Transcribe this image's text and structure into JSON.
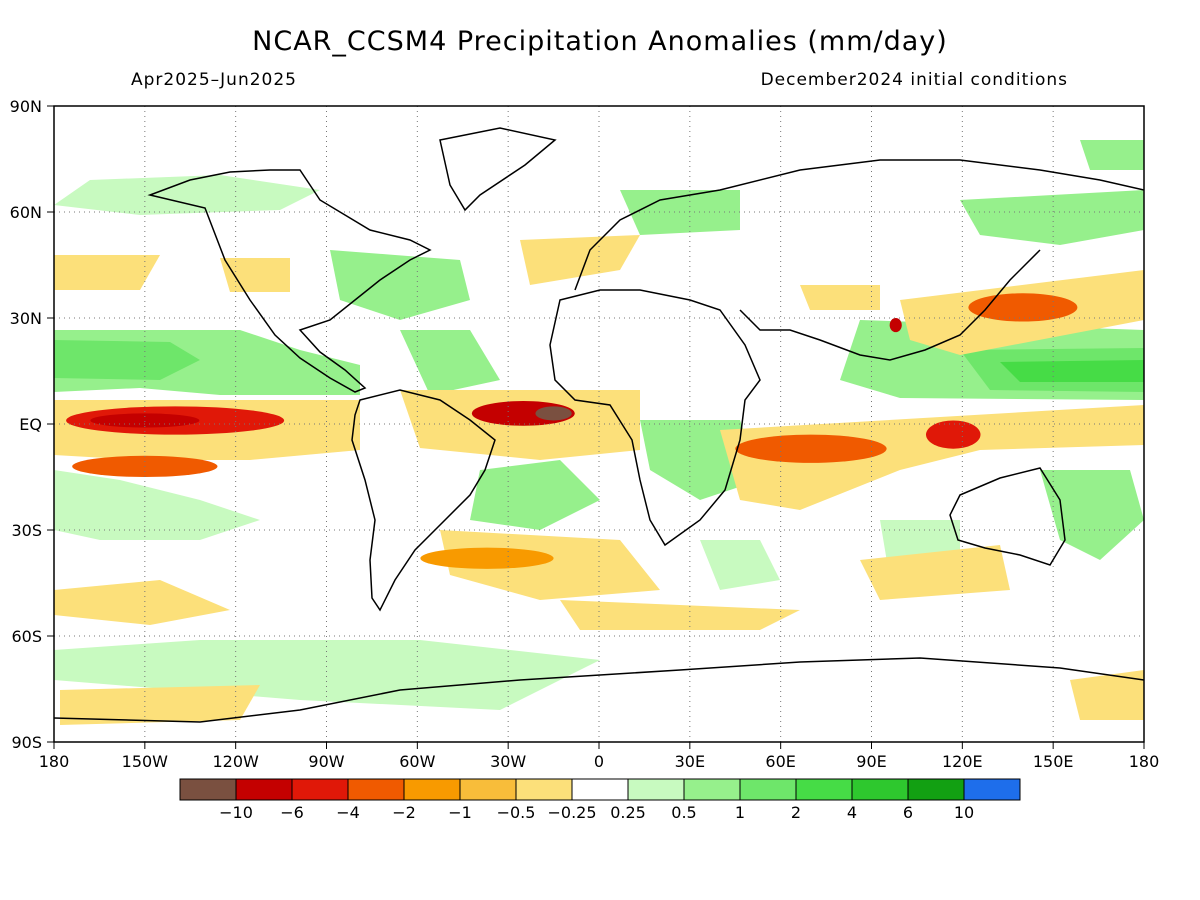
{
  "title": "NCAR_CCSM4 Precipitation Anomalies (mm/day)",
  "subtitle_left": "Apr2025–Jun2025",
  "subtitle_right": "December2024 initial conditions",
  "map": {
    "projection": "cylindrical-equidistant",
    "lon_range": [
      -180,
      180
    ],
    "lat_range": [
      -90,
      90
    ],
    "grid": "dotted",
    "lat_ticks": [
      {
        "value": 90,
        "label": "90N"
      },
      {
        "value": 60,
        "label": "60N"
      },
      {
        "value": 30,
        "label": "30N"
      },
      {
        "value": 0,
        "label": "EQ"
      },
      {
        "value": -30,
        "label": "30S"
      },
      {
        "value": -60,
        "label": "60S"
      },
      {
        "value": -90,
        "label": "90S"
      }
    ],
    "lon_ticks": [
      {
        "value": -180,
        "label": "180"
      },
      {
        "value": -150,
        "label": "150W"
      },
      {
        "value": -120,
        "label": "120W"
      },
      {
        "value": -90,
        "label": "90W"
      },
      {
        "value": -60,
        "label": "60W"
      },
      {
        "value": -30,
        "label": "30W"
      },
      {
        "value": 0,
        "label": "0"
      },
      {
        "value": 30,
        "label": "30E"
      },
      {
        "value": 60,
        "label": "60E"
      },
      {
        "value": 90,
        "label": "90E"
      },
      {
        "value": 120,
        "label": "120E"
      },
      {
        "value": 150,
        "label": "150E"
      },
      {
        "value": 180,
        "label": "180"
      }
    ]
  },
  "colorbar": {
    "colors": [
      "#7a5040",
      "#c40000",
      "#e01808",
      "#f05a00",
      "#f89a00",
      "#f8bd3a",
      "#fce07a",
      "#ffffff",
      "#c8fac0",
      "#96f08c",
      "#6ee66a",
      "#46dc46",
      "#2ec82e",
      "#12a012",
      "#1e6eeb"
    ],
    "labels": [
      "−10",
      "−6",
      "−4",
      "−2",
      "−1",
      "−0.5",
      "−0.25",
      "0.25",
      "0.5",
      "1",
      "2",
      "4",
      "6",
      "10"
    ]
  },
  "anomaly_blobs": [
    {
      "lon": -140,
      "lat": 1,
      "rx": 36,
      "ry": 4,
      "level": 2
    },
    {
      "lon": -150,
      "lat": 1,
      "rx": 18,
      "ry": 2,
      "level": 1
    },
    {
      "lon": -25,
      "lat": 3,
      "rx": 17,
      "ry": 3.5,
      "level": 1
    },
    {
      "lon": -15,
      "lat": 3,
      "rx": 6,
      "ry": 2,
      "level": 0
    },
    {
      "lon": 70,
      "lat": -7,
      "rx": 25,
      "ry": 4,
      "level": 3
    },
    {
      "lon": 117,
      "lat": -3,
      "rx": 9,
      "ry": 4,
      "level": 2
    },
    {
      "lon": 98,
      "lat": 28,
      "rx": 2,
      "ry": 2,
      "level": 1
    },
    {
      "lon": 140,
      "lat": 33,
      "rx": 18,
      "ry": 4,
      "level": 3
    },
    {
      "lon": -150,
      "lat": -12,
      "rx": 24,
      "ry": 3,
      "level": 3
    },
    {
      "lon": -37,
      "lat": -38,
      "rx": 22,
      "ry": 3,
      "level": 4
    }
  ]
}
